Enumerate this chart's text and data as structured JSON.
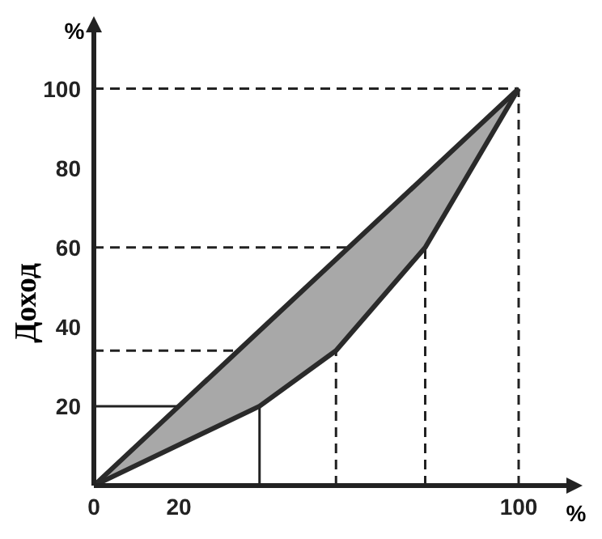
{
  "chart_data": {
    "type": "line",
    "ylabel": "Доход",
    "xlabel": "%",
    "annotations": [
      "%"
    ],
    "xlim": [
      0,
      112
    ],
    "ylim": [
      0,
      115
    ],
    "xticks": [
      0,
      20,
      100
    ],
    "yticks": [
      20,
      40,
      60,
      80,
      100
    ],
    "grid": false,
    "marker": "none",
    "line_style": "solid",
    "series": [
      {
        "color": "#2a2a2a",
        "x": [
          0,
          39,
          57,
          78,
          100
        ],
        "values": [
          0,
          39,
          57,
          78,
          100
        ],
        "lower": [
          0,
          20,
          34,
          60,
          100
        ],
        "upper": [
          0,
          39,
          57,
          78,
          100
        ]
      },
      {
        "color": "#2a2a2a",
        "x": [
          0,
          39,
          57,
          78,
          100
        ],
        "values": [
          0,
          20,
          34,
          60,
          100
        ]
      }
    ],
    "ref_lines": [
      {
        "axis": "x",
        "value": 39,
        "line_style": "solid"
      },
      {
        "axis": "y",
        "value": 20,
        "line_style": "solid"
      },
      {
        "axis": "x",
        "value": 57,
        "line_style": "dashed"
      },
      {
        "axis": "y",
        "value": 34,
        "line_style": "dashed"
      },
      {
        "axis": "x",
        "value": 78,
        "line_style": "dashed"
      },
      {
        "axis": "y",
        "value": 60,
        "line_style": "dashed"
      },
      {
        "axis": "x",
        "value": 100,
        "line_style": "dashed"
      },
      {
        "axis": "y",
        "value": 100,
        "line_style": "dashed"
      }
    ]
  }
}
